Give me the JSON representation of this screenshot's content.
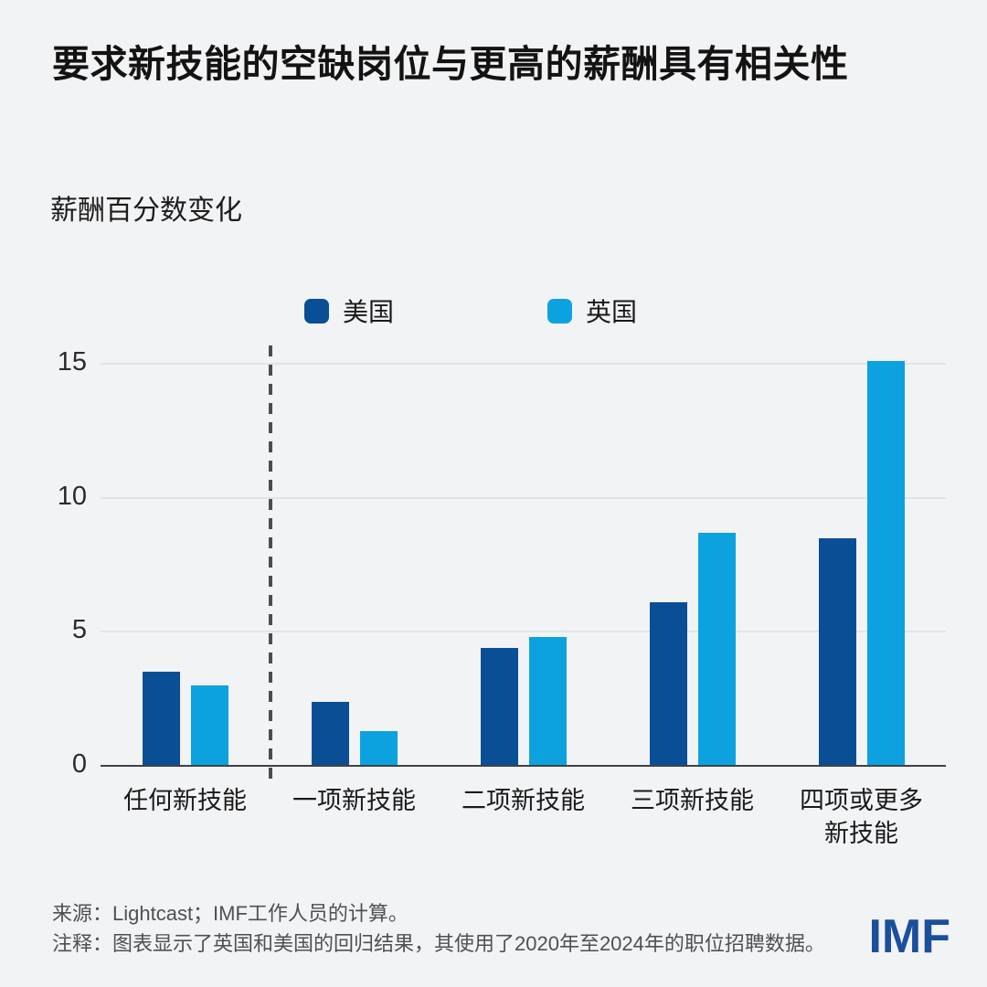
{
  "title": "要求新技能的空缺岗位与更高的薪酬具有相关性",
  "subtitle": "薪酬百分数变化",
  "legend": [
    {
      "label": "美国",
      "color": "#0A4E96"
    },
    {
      "label": "英国",
      "color": "#0CA2E0"
    }
  ],
  "chart_data": {
    "type": "bar",
    "title": "要求新技能的空缺岗位与更高的薪酬具有相关性",
    "ylabel": "薪酬百分数变化",
    "categories": [
      "任何新技能",
      "一项新技能",
      "二项新技能",
      "三项新技能",
      "四项或更多新技能"
    ],
    "series": [
      {
        "name": "美国",
        "color": "#0A4E96",
        "values": [
          3.5,
          2.4,
          4.4,
          6.1,
          8.5
        ]
      },
      {
        "name": "英国",
        "color": "#0CA2E0",
        "values": [
          3.0,
          1.3,
          4.8,
          8.7,
          15.1
        ]
      }
    ],
    "yticks": [
      0,
      5,
      10,
      15
    ],
    "ylim": [
      0,
      16
    ],
    "grid": true,
    "legend_position": "top",
    "separator_after_category_index": 0
  },
  "footer": {
    "source": "来源：Lightcast；IMF工作人员的计算。",
    "note": "注释：图表显示了英国和美国的回归结果，其使用了2020年至2024年的职位招聘数据。"
  },
  "logo": {
    "text": "IMF",
    "color": "#1A4F9C"
  }
}
